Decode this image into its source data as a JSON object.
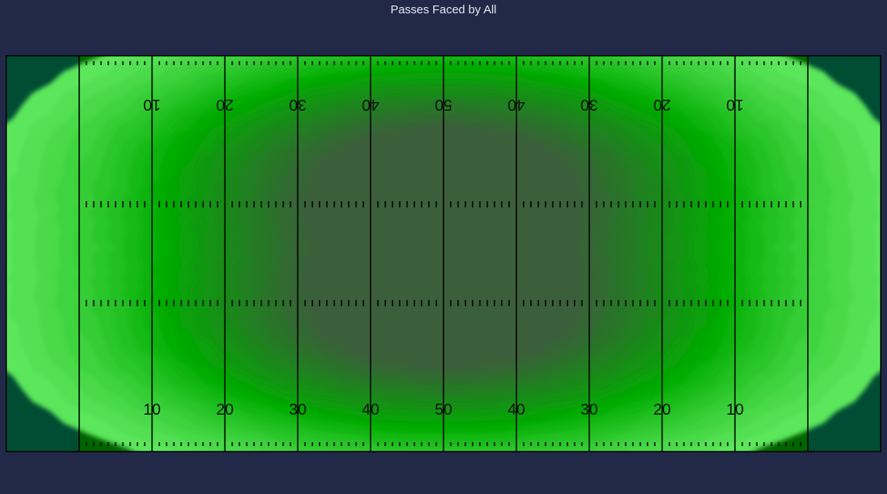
{
  "chart_data": {
    "type": "heatmap",
    "title": "Passes Faced by All",
    "xlabel": "",
    "ylabel": "",
    "grid": false,
    "legend": "none",
    "x_unit": "yards (0-120 incl. end zones)",
    "y_unit": "yards (0-53.3)",
    "xlim": [
      0,
      120
    ],
    "ylim": [
      0,
      53.3
    ],
    "yard_labels": [
      "10",
      "20",
      "30",
      "40",
      "50",
      "40",
      "30",
      "20",
      "10"
    ],
    "yard_label_positions": [
      20,
      30,
      40,
      50,
      60,
      70,
      80,
      90,
      100
    ],
    "density_peaks": [
      {
        "x": 60,
        "y": 39.0,
        "intensity": 1.0
      },
      {
        "x": 60,
        "y": 16.0,
        "intensity": 1.0
      }
    ],
    "colors": {
      "background": "#222948",
      "field": "#006400",
      "endzone": "#004d33",
      "density_low": "#5ce65c",
      "density_mid": "#00aa00",
      "density_high": "#3b5e3b",
      "lines": "#000000",
      "title": "#e6e6ee"
    }
  }
}
